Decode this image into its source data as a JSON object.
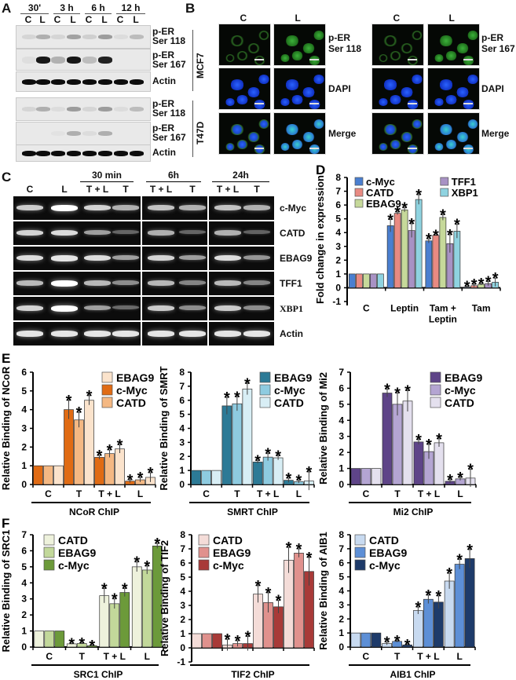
{
  "panelA": {
    "letter": "A",
    "timepoints": [
      "30'",
      "3 h",
      "6 h",
      "12 h"
    ],
    "lanes": [
      "C",
      "L",
      "C",
      "L",
      "C",
      "L",
      "C",
      "L"
    ],
    "rows_mcf7": [
      "p-ER\nSer 118",
      "p-ER\nSer 167",
      "Actin"
    ],
    "rows_t47d": [
      "p-ER\nSer 118",
      "p-ER\nSer 167",
      "Actin"
    ],
    "row_labels": {
      "r1a": "p-ER",
      "r1b": "Ser 118",
      "r2a": "p-ER",
      "r2b": "Ser 167",
      "r3": "Actin"
    },
    "cell_lines": [
      "MCF7",
      "T47D"
    ]
  },
  "panelB": {
    "letter": "B",
    "col_labels": [
      "C",
      "L",
      "C",
      "L"
    ],
    "row_labels_left": {
      "r1a": "p-ER",
      "r1b": "Ser 118",
      "r2": "DAPI",
      "r3": "Merge"
    },
    "row_labels_right": {
      "r1a": "p-ER",
      "r1b": "Ser 167",
      "r2": "DAPI",
      "r3": "Merge"
    }
  },
  "panelC": {
    "letter": "C",
    "time_groups": [
      "30 min",
      "6h",
      "24h"
    ],
    "lanes": [
      "C",
      "L",
      "T + L",
      "T",
      "T + L",
      "T",
      "T + L",
      "T"
    ],
    "genes": [
      "c-Myc",
      "CATD",
      "EBAG9",
      "TFF1",
      "XBP1",
      "Actin"
    ]
  },
  "colors": {
    "D": {
      "c-Myc": "#4a7fd0",
      "CATD": "#e88a82",
      "EBAG9": "#c6d99a",
      "TFF1": "#a892c4",
      "XBP1": "#8fd3e0"
    },
    "NCoR": [
      "#e06b14",
      "#f4b883",
      "#fbe3cc"
    ],
    "SMRT": [
      "#2c7a96",
      "#8ecbe0",
      "#d8eef5"
    ],
    "Mi2": [
      "#5e4488",
      "#b4a5d2",
      "#e4e0ee"
    ],
    "SRC1": [
      "#eef2dc",
      "#c2d89a",
      "#6c9a3a"
    ],
    "TIF2": [
      "#f4dcd8",
      "#e0918d",
      "#a83a38"
    ],
    "AIB1": [
      "#c8daf0",
      "#5d8fd6",
      "#1e3b6a"
    ]
  },
  "chart_data": [
    {
      "id": "D",
      "type": "bar",
      "title": "",
      "panel_letter": "D",
      "categories": [
        "C",
        "Leptin",
        "Tam + Leptin",
        "Tam"
      ],
      "category_labels": [
        "C",
        "Leptin",
        "Tam +",
        "Leptin",
        "Tam"
      ],
      "series": [
        {
          "name": "c-Myc",
          "values": [
            1,
            4.5,
            3.4,
            0.05
          ],
          "errors": [
            0,
            0.45,
            0.15,
            0.05
          ]
        },
        {
          "name": "CATD",
          "values": [
            1,
            5.4,
            3.8,
            0.15
          ],
          "errors": [
            0,
            0.1,
            0.02,
            0.1
          ]
        },
        {
          "name": "EBAG9",
          "values": [
            1,
            5.65,
            5.1,
            0.25
          ],
          "errors": [
            0,
            0.15,
            0.2,
            0.05
          ]
        },
        {
          "name": "TFF1",
          "values": [
            1,
            4.15,
            3.2,
            0.3
          ],
          "errors": [
            0,
            0.5,
            0.65,
            0.15
          ]
        },
        {
          "name": "XBP1",
          "values": [
            1,
            6.4,
            4.1,
            0.4
          ],
          "errors": [
            0,
            0.35,
            0.5,
            0.3
          ]
        }
      ],
      "significance": [
        [
          false,
          false,
          false,
          false,
          false
        ],
        [
          true,
          true,
          true,
          true,
          true
        ],
        [
          true,
          true,
          true,
          true,
          true
        ],
        [
          true,
          true,
          true,
          true,
          true
        ]
      ],
      "xlabel": "",
      "ylabel": "Fold change in expression",
      "ylim": [
        -1,
        8
      ],
      "yticks": [
        -1,
        0,
        1,
        2,
        3,
        4,
        5,
        6,
        7,
        8
      ],
      "legend": [
        "c-Myc",
        "CATD",
        "EBAG9",
        "TFF1",
        "XBP1"
      ],
      "legend_position": "upper-left-two-columns"
    },
    {
      "id": "NCoR",
      "type": "bar",
      "panel_letter": "E",
      "categories": [
        "C",
        "T",
        "T + L",
        "L"
      ],
      "series": [
        {
          "name": "c-Myc",
          "values": [
            1,
            4.0,
            1.45,
            0.18
          ],
          "errors": [
            0,
            0.5,
            0.1,
            0.08
          ]
        },
        {
          "name": "CATD",
          "values": [
            1,
            3.45,
            1.65,
            0.25
          ],
          "errors": [
            0,
            0.4,
            0.2,
            0.12
          ]
        },
        {
          "name": "EBAG9",
          "values": [
            1,
            4.5,
            1.9,
            0.38
          ],
          "errors": [
            0,
            0.25,
            0.22,
            0.25
          ]
        }
      ],
      "significance": [
        [
          false,
          false,
          false
        ],
        [
          true,
          true,
          true
        ],
        [
          true,
          true,
          true
        ],
        [
          true,
          true,
          true
        ]
      ],
      "xlabel": "NCoR ChIP",
      "ylabel": "Relative Binding of NCoR",
      "ylim": [
        0,
        6
      ],
      "yticks": [
        0,
        1,
        2,
        3,
        4,
        5,
        6
      ],
      "legend": [
        "EBAG9",
        "c-Myc",
        "CATD"
      ],
      "legend_position": "upper-right"
    },
    {
      "id": "SMRT",
      "type": "bar",
      "categories": [
        "C",
        "T",
        "T + L",
        "L"
      ],
      "series": [
        {
          "name": "EBAG9",
          "values": [
            1,
            5.6,
            1.6,
            0.3
          ],
          "errors": [
            0,
            0.6,
            0.1,
            0.15
          ]
        },
        {
          "name": "c-Myc",
          "values": [
            1,
            5.75,
            1.95,
            0.2
          ],
          "errors": [
            0,
            0.5,
            0.25,
            0.1
          ]
        },
        {
          "name": "CATD",
          "values": [
            1,
            6.8,
            1.9,
            0.25
          ],
          "errors": [
            0,
            0.4,
            0.15,
            0.65
          ]
        }
      ],
      "significance": [
        [
          false,
          false,
          false
        ],
        [
          true,
          true,
          true
        ],
        [
          true,
          true,
          true
        ],
        [
          true,
          true,
          true
        ]
      ],
      "xlabel": "SMRT ChIP",
      "ylabel": "Relative Binding of SMRT",
      "ylim": [
        0,
        8
      ],
      "yticks": [
        0,
        1,
        2,
        3,
        4,
        5,
        6,
        7,
        8
      ],
      "legend": [
        "EBAG9",
        "c-Myc",
        "CATD"
      ],
      "legend_position": "upper-right"
    },
    {
      "id": "Mi2",
      "type": "bar",
      "categories": [
        "C",
        "T",
        "T + L",
        "L"
      ],
      "series": [
        {
          "name": "EBAG9",
          "values": [
            1,
            5.7,
            2.65,
            0.2
          ],
          "errors": [
            0,
            0.25,
            0.15,
            0.1
          ]
        },
        {
          "name": "c-Myc",
          "values": [
            1,
            5.0,
            2.05,
            0.35
          ],
          "errors": [
            0,
            0.7,
            0.45,
            0.1
          ]
        },
        {
          "name": "CATD",
          "values": [
            1,
            5.2,
            2.6,
            0.4
          ],
          "errors": [
            0,
            0.65,
            0.25,
            0.55
          ]
        }
      ],
      "significance": [
        [
          false,
          false,
          false
        ],
        [
          true,
          true,
          true
        ],
        [
          true,
          true,
          true
        ],
        [
          true,
          true,
          true
        ]
      ],
      "xlabel": "Mi2 ChIP",
      "ylabel": "Relative Binding of Mi2",
      "ylim": [
        0,
        7
      ],
      "yticks": [
        0,
        1,
        2,
        3,
        4,
        5,
        6,
        7
      ],
      "legend": [
        "EBAG9",
        "c-Myc",
        "CATD"
      ],
      "legend_position": "upper-right"
    },
    {
      "id": "SRC1",
      "type": "bar",
      "panel_letter": "F",
      "categories": [
        "C",
        "T",
        "T + L",
        "L"
      ],
      "series": [
        {
          "name": "CATD",
          "values": [
            1,
            0.2,
            3.2,
            5.0
          ],
          "errors": [
            0,
            0.02,
            0.45,
            0.3
          ]
        },
        {
          "name": "EBAG9",
          "values": [
            1,
            0.22,
            2.7,
            4.8
          ],
          "errors": [
            0,
            0.03,
            0.3,
            0.25
          ]
        },
        {
          "name": "c-Myc",
          "values": [
            1,
            0.08,
            3.4,
            6.3
          ],
          "errors": [
            0,
            0.02,
            0.25,
            0.15
          ]
        }
      ],
      "significance": [
        [
          false,
          false,
          false
        ],
        [
          true,
          true,
          true
        ],
        [
          true,
          true,
          true
        ],
        [
          true,
          true,
          true
        ]
      ],
      "xlabel": "SRC1 ChIP",
      "ylabel": "Relative Binding of SRC1",
      "ylim": [
        0,
        7
      ],
      "yticks": [
        0,
        1,
        2,
        3,
        4,
        5,
        6,
        7
      ],
      "legend": [
        "CATD",
        "EBAG9",
        "c-Myc"
      ],
      "legend_position": "upper-left"
    },
    {
      "id": "TIF2",
      "type": "bar",
      "categories": [
        "C",
        "T",
        "T + L",
        "L"
      ],
      "series": [
        {
          "name": "CATD",
          "values": [
            1,
            0.2,
            3.8,
            6.2
          ],
          "errors": [
            0,
            0.4,
            0.6,
            0.9
          ]
        },
        {
          "name": "EBAG9",
          "values": [
            1,
            0.3,
            3.2,
            6.7
          ],
          "errors": [
            0,
            0.2,
            0.7,
            0.3
          ]
        },
        {
          "name": "c-Myc",
          "values": [
            1,
            0.3,
            2.9,
            5.4
          ],
          "errors": [
            0,
            0.5,
            0.45,
            1.0
          ]
        }
      ],
      "significance": [
        [
          false,
          false,
          false
        ],
        [
          true,
          true,
          true
        ],
        [
          true,
          true,
          true
        ],
        [
          true,
          true,
          true
        ]
      ],
      "xlabel": "TIF2 ChIP",
      "ylabel": "Relative Binding of TIF2",
      "ylim": [
        -1,
        8
      ],
      "yticks": [
        -1,
        0,
        1,
        2,
        3,
        4,
        5,
        6,
        7,
        8
      ],
      "legend": [
        "CATD",
        "EBAG9",
        "c-Myc"
      ],
      "legend_position": "upper-left"
    },
    {
      "id": "AIB1",
      "type": "bar",
      "categories": [
        "C",
        "T",
        "T + L",
        "L"
      ],
      "series": [
        {
          "name": "CATD",
          "values": [
            1,
            0.25,
            2.6,
            4.7
          ],
          "errors": [
            0,
            0.1,
            0.25,
            0.55
          ]
        },
        {
          "name": "EBAG9",
          "values": [
            1,
            0.4,
            3.4,
            5.9
          ],
          "errors": [
            0,
            0.05,
            0.3,
            0.35
          ]
        },
        {
          "name": "c-Myc",
          "values": [
            1,
            0.15,
            3.2,
            6.3
          ],
          "errors": [
            0,
            0.03,
            0.45,
            0.65
          ]
        }
      ],
      "significance": [
        [
          false,
          false,
          false
        ],
        [
          true,
          true,
          true
        ],
        [
          true,
          true,
          true
        ],
        [
          true,
          true,
          true
        ]
      ],
      "xlabel": "AIB1 ChIP",
      "ylabel": "Relative Binding of AIB1",
      "ylim": [
        0,
        8
      ],
      "yticks": [
        0,
        1,
        2,
        3,
        4,
        5,
        6,
        7,
        8
      ],
      "legend": [
        "CATD",
        "EBAG9",
        "c-Myc"
      ],
      "legend_position": "upper-left"
    }
  ]
}
